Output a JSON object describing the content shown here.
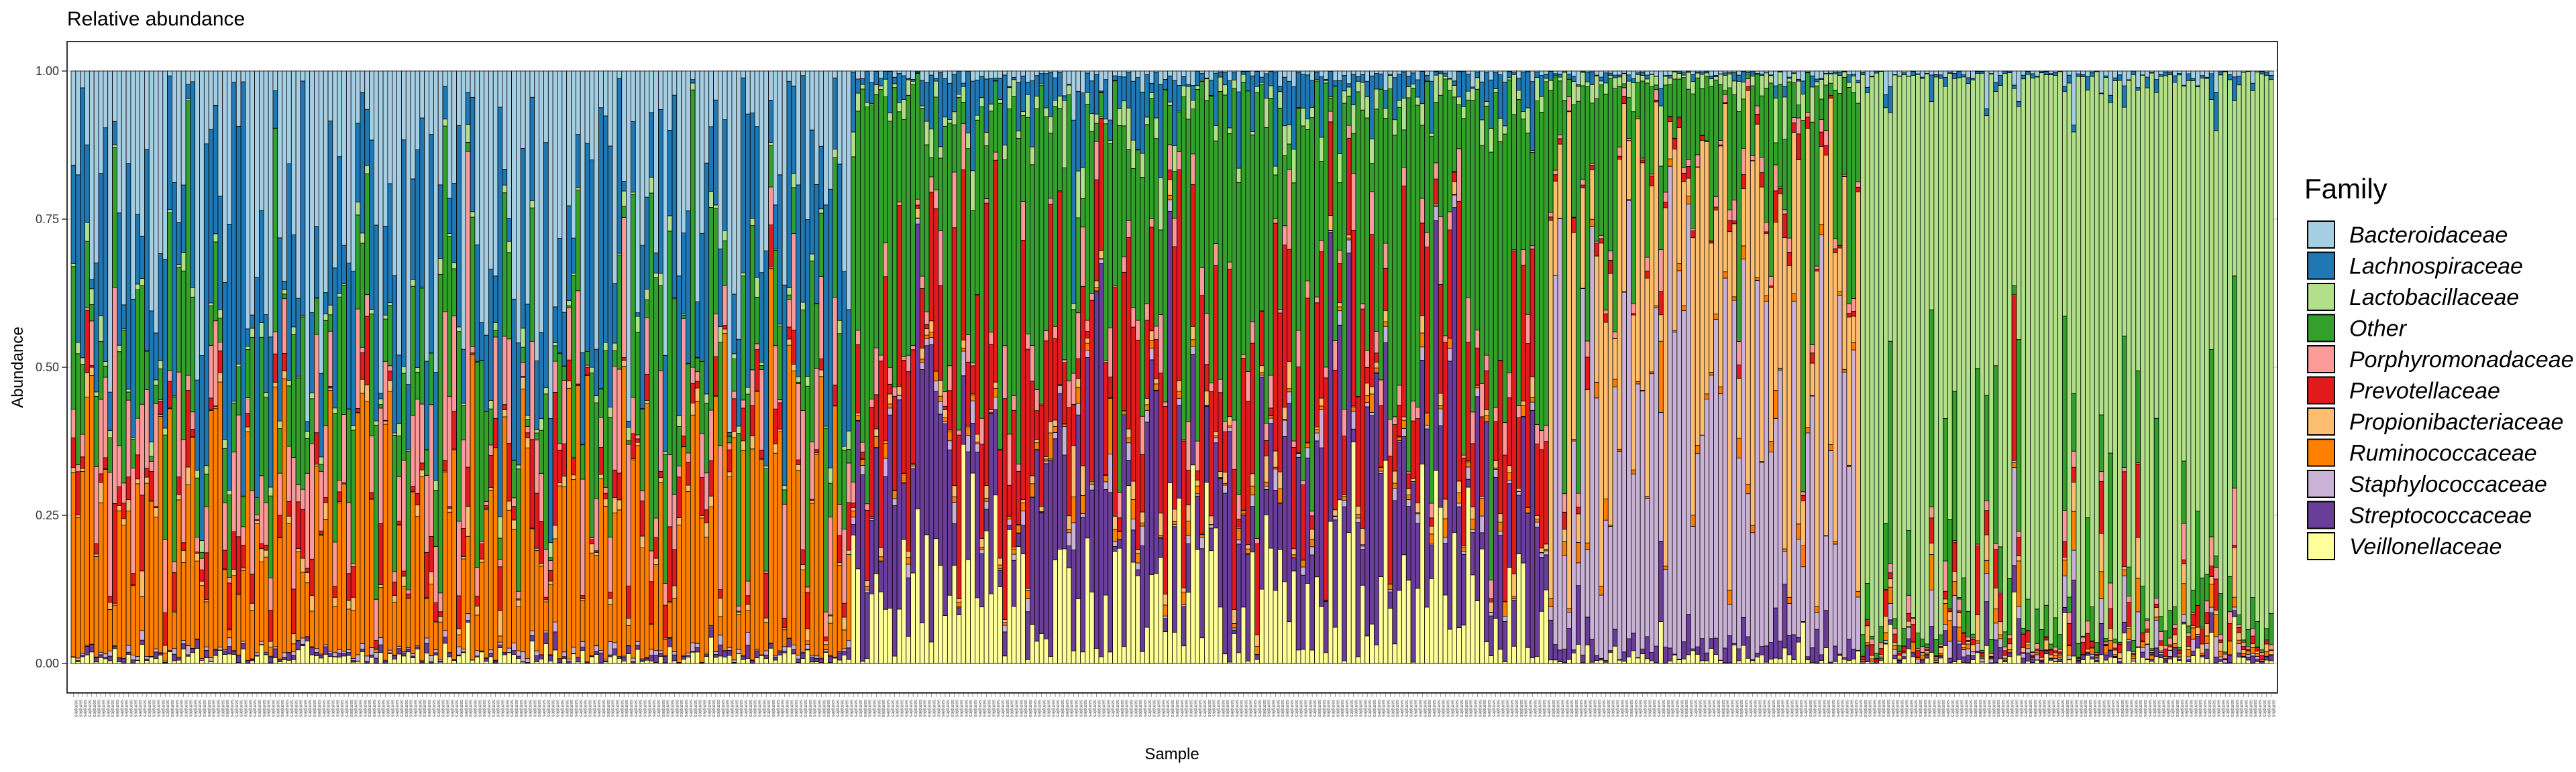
{
  "chart_data": {
    "type": "bar",
    "stacked": true,
    "title": "Relative abundance",
    "xlabel": "Sample",
    "ylabel": "Abundance",
    "ylim": [
      0,
      1
    ],
    "y_ticks": [
      "0.00",
      "0.25",
      "0.50",
      "0.75",
      "1.00"
    ],
    "y_tick_values": [
      0,
      0.25,
      0.5,
      0.75,
      1.0
    ],
    "grid": true,
    "legend_position": "right",
    "legend_title": "Family",
    "x_tick_label": "samples",
    "n_samples": 480,
    "series": [
      {
        "name": "Bacteroidaceae",
        "color": "#a6cee3"
      },
      {
        "name": "Lachnospiraceae",
        "color": "#1f78b4"
      },
      {
        "name": "Lactobacillaceae",
        "color": "#b2df8a"
      },
      {
        "name": "Other",
        "color": "#33a02c"
      },
      {
        "name": "Porphyromonadaceae",
        "color": "#fb9a99"
      },
      {
        "name": "Prevotellaceae",
        "color": "#e31a1c"
      },
      {
        "name": "Propionibacteriaceae",
        "color": "#fdbf6f"
      },
      {
        "name": "Ruminococcaceae",
        "color": "#ff7f00"
      },
      {
        "name": "Staphylococcaceae",
        "color": "#cab2d6"
      },
      {
        "name": "Streptococcaceae",
        "color": "#6a3d9a"
      },
      {
        "name": "Veillonellaceae",
        "color": "#ffff99"
      }
    ],
    "sample_groups": [
      {
        "count": 170,
        "mean_composition": {
          "Veillonellaceae": 0.01,
          "Streptococcaceae": 0.005,
          "Staphylococcaceae": 0.005,
          "Ruminococcaceae": 0.22,
          "Propionibacteriaceae": 0.01,
          "Prevotellaceae": 0.04,
          "Porphyromonadaceae": 0.09,
          "Other": 0.17,
          "Lactobacillaceae": 0.01,
          "Lachnospiraceae": 0.2,
          "Bacteroidaceae": 0.24
        }
      },
      {
        "count": 152,
        "mean_composition": {
          "Veillonellaceae": 0.11,
          "Streptococcaceae": 0.2,
          "Staphylococcaceae": 0.01,
          "Ruminococcaceae": 0.01,
          "Propionibacteriaceae": 0.01,
          "Prevotellaceae": 0.17,
          "Porphyromonadaceae": 0.03,
          "Other": 0.39,
          "Lactobacillaceae": 0.02,
          "Lachnospiraceae": 0.04,
          "Bacteroidaceae": 0.01
        }
      },
      {
        "count": 68,
        "mean_composition": {
          "Veillonellaceae": 0.01,
          "Streptococcaceae": 0.02,
          "Staphylococcaceae": 0.44,
          "Ruminococcaceae": 0.01,
          "Propionibacteriaceae": 0.3,
          "Prevotellaceae": 0.01,
          "Porphyromonadaceae": 0.01,
          "Other": 0.17,
          "Lactobacillaceae": 0.02,
          "Lachnospiraceae": 0.005,
          "Bacteroidaceae": 0.005
        }
      },
      {
        "count": 90,
        "mean_composition": {
          "Veillonellaceae": 0.005,
          "Streptococcaceae": 0.005,
          "Staphylococcaceae": 0.005,
          "Ruminococcaceae": 0.005,
          "Propionibacteriaceae": 0.005,
          "Prevotellaceae": 0.01,
          "Porphyromonadaceae": 0.005,
          "Other": 0.03,
          "Lactobacillaceae": 0.925,
          "Lachnospiraceae": 0.005,
          "Bacteroidaceae": 0.005
        }
      }
    ]
  }
}
